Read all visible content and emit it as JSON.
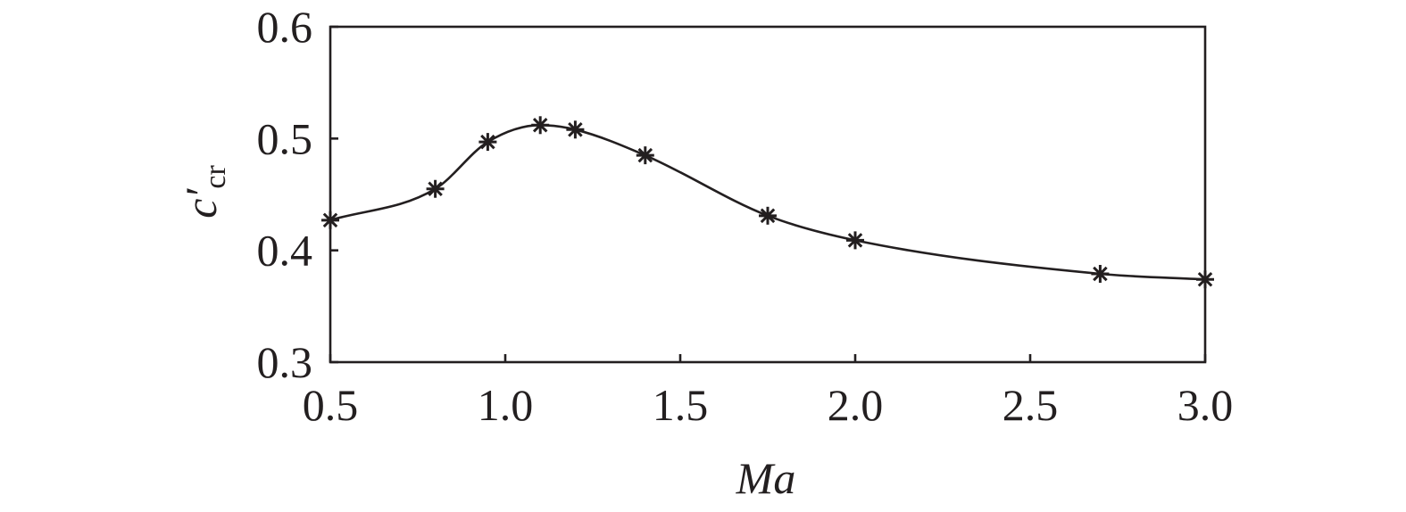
{
  "chart_data": {
    "type": "line",
    "title": "",
    "xlabel": "Ma",
    "ylabel": {
      "main": "c′",
      "sub": "cr"
    },
    "xlim": [
      0.5,
      3.0
    ],
    "ylim": [
      0.3,
      0.6
    ],
    "x_ticks": [
      "0.5",
      "1.0",
      "1.5",
      "2.0",
      "2.5",
      "3.0"
    ],
    "y_ticks": [
      "0.3",
      "0.4",
      "0.5",
      "0.6"
    ],
    "grid": false,
    "legend": "none",
    "marker": "asterisk",
    "line_color": "#231f20",
    "series": [
      {
        "x": [
          0.5,
          0.8,
          0.95,
          1.1,
          1.2,
          1.4,
          1.75,
          2.0,
          2.7,
          3.0
        ],
        "y": [
          0.427,
          0.455,
          0.497,
          0.512,
          0.508,
          0.485,
          0.431,
          0.409,
          0.379,
          0.374
        ]
      }
    ]
  }
}
